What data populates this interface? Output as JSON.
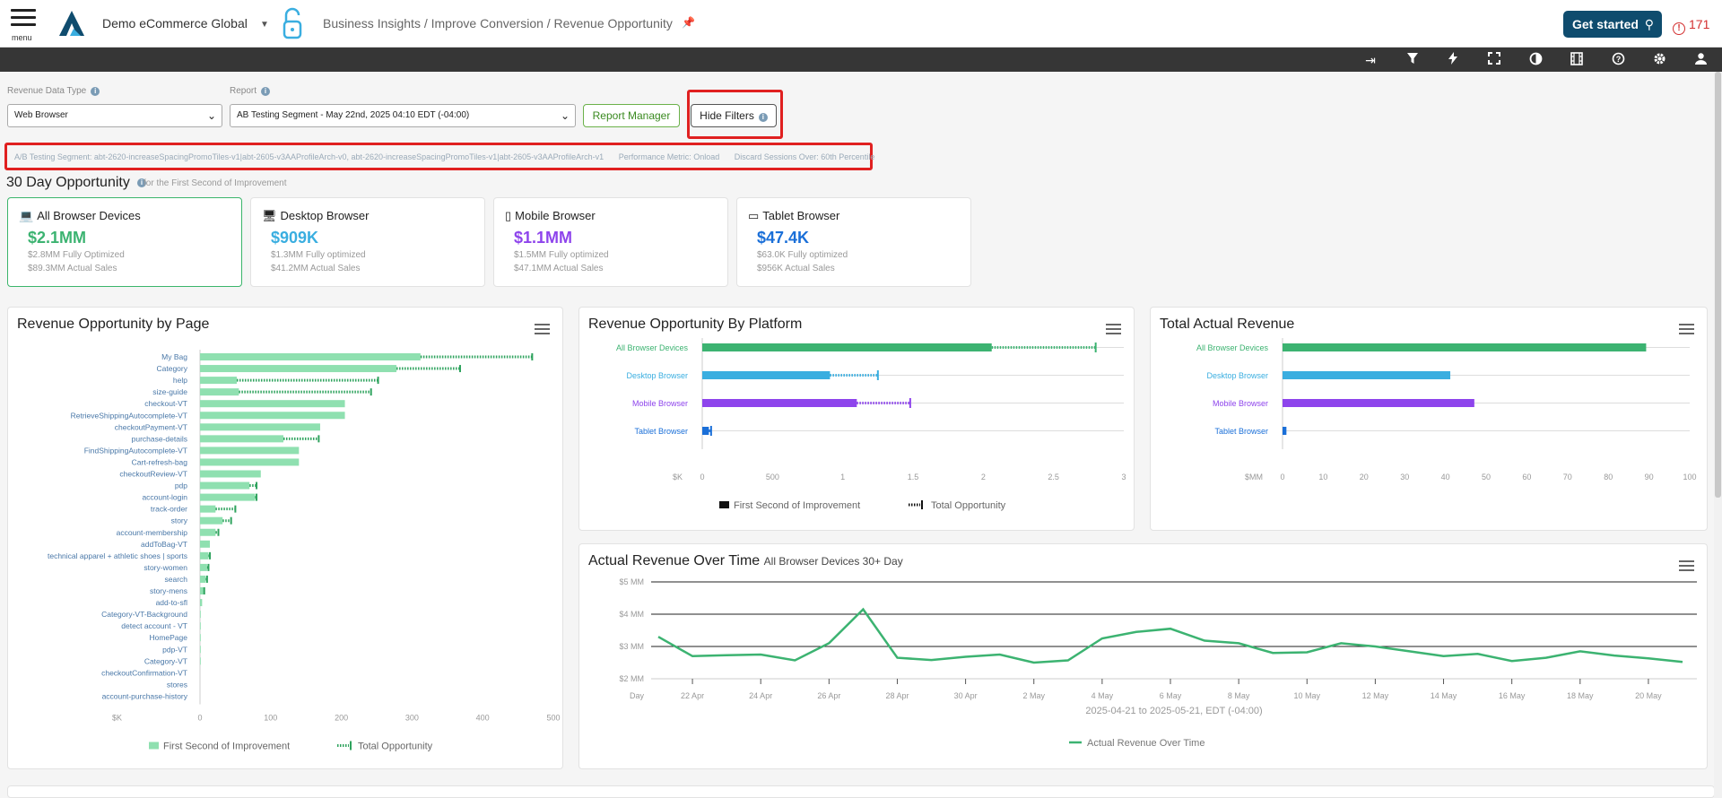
{
  "topbar": {
    "menu_label": "menu",
    "org_name": "Demo eCommerce Global",
    "breadcrumb": "Business Insights / Improve Conversion / Revenue Opportunity",
    "get_started": "Get started",
    "alert_count": "171"
  },
  "toolbar": {
    "icons": [
      "sign-in-icon",
      "filter-icon",
      "lightning-icon",
      "fullscreen-icon",
      "contrast-icon",
      "film-icon",
      "help-icon",
      "settings-icon",
      "user-icon"
    ]
  },
  "filters": {
    "revenue_data_type_label": "Revenue Data Type",
    "revenue_data_type_value": "Web Browser",
    "report_label": "Report",
    "report_value": "AB Testing Segment - May 22nd, 2025 04:10 EDT (-04:00)",
    "report_manager": "Report Manager",
    "hide_filters": "Hide Filters"
  },
  "segment_info": {
    "segment": "A/B Testing Segment: abt-2620-increaseSpacingPromoTiles-v1|abt-2605-v3AAProfileArch-v0, abt-2620-increaseSpacingPromoTiles-v1|abt-2605-v3AAProfileArch-v1",
    "metric": "Performance Metric: Onload",
    "discard": "Discard Sessions Over: 60th Percentile"
  },
  "opportunity": {
    "title": "30 Day Opportunity",
    "subtitle": "for the First Second of Improvement",
    "cards": [
      {
        "title": "All Browser Devices",
        "value": "$2.1MM",
        "line1": "$2.8MM Fully Optimized",
        "line2": "$89.3MM Actual Sales",
        "color": "#3cb371"
      },
      {
        "title": "Desktop Browser",
        "value": "$909K",
        "line1": "$1.3MM Fully optimized",
        "line2": "$41.2MM Actual Sales",
        "color": "#3aaee0"
      },
      {
        "title": "Mobile Browser",
        "value": "$1.1MM",
        "line1": "$1.5MM Fully optimized",
        "line2": "$47.1MM Actual Sales",
        "color": "#8e44ec"
      },
      {
        "title": "Tablet Browser",
        "value": "$47.4K",
        "line1": "$63.0K Fully optimized",
        "line2": "$956K Actual Sales",
        "color": "#1a6fd8"
      }
    ]
  },
  "panels": {
    "by_page_title": "Revenue Opportunity by Page",
    "by_platform_title": "Revenue Opportunity By Platform",
    "total_revenue_title": "Total Actual Revenue",
    "over_time_title": "Actual Revenue Over Time",
    "over_time_sub": "All Browser Devices 30+ Day"
  },
  "chart_data": [
    {
      "type": "bar",
      "title": "Revenue Opportunity by Page",
      "xlabel": "$K",
      "xlim": [
        0,
        500
      ],
      "xticks": [
        0,
        100,
        200,
        300,
        400,
        500
      ],
      "categories": [
        "My Bag",
        "Category",
        "help",
        "size-guide",
        "checkout-VT",
        "RetrieveShippingAutocomplete-VT",
        "checkoutPayment-VT",
        "purchase-details",
        "FindShippingAutocomplete-VT",
        "Cart-refresh-bag",
        "checkoutReview-VT",
        "pdp",
        "account-login",
        "track-order",
        "story",
        "account-membership",
        "addToBag-VT",
        "technical apparel + athletic shoes | sports",
        "story-women",
        "search",
        "story-mens",
        "add-to-sfl",
        "Category-VT-Background",
        "detect account - VT",
        "HomePage",
        "pdp-VT",
        "Category-VT",
        "checkoutConfirmation-VT",
        "stores",
        "account-purchase-history"
      ],
      "series": [
        {
          "name": "First Second of Improvement",
          "color": "#8fe0b0",
          "values": [
            312,
            278,
            52,
            55,
            205,
            205,
            170,
            118,
            140,
            140,
            86,
            70,
            78,
            22,
            32,
            22,
            14,
            12,
            10,
            8,
            5,
            3,
            1,
            1,
            1,
            1,
            1,
            0,
            0,
            0
          ]
        },
        {
          "name": "Total Opportunity",
          "color": "#2fa35e",
          "values": [
            470,
            368,
            252,
            242,
            205,
            205,
            170,
            168,
            140,
            140,
            86,
            80,
            80,
            50,
            44,
            26,
            14,
            14,
            12,
            10,
            6,
            3,
            1,
            1,
            1,
            1,
            1,
            0,
            0,
            0
          ]
        }
      ]
    },
    {
      "type": "bar",
      "title": "Revenue Opportunity By Platform",
      "xlabel": "$K",
      "xticks": [
        "0",
        "500",
        "1",
        "1.5",
        "2",
        "2.5",
        "3"
      ],
      "xlim": [
        0,
        3
      ],
      "categories": [
        "All Browser Devices",
        "Desktop Browser",
        "Mobile Browser",
        "Tablet Browser"
      ],
      "colors": [
        "#3cb371",
        "#3aaee0",
        "#8e44ec",
        "#1a6fd8"
      ],
      "series": [
        {
          "name": "First Second of Improvement",
          "values": [
            2.06,
            0.909,
            1.1,
            0.047
          ]
        },
        {
          "name": "Total Opportunity",
          "values": [
            2.8,
            1.25,
            1.48,
            0.063
          ]
        }
      ]
    },
    {
      "type": "bar",
      "title": "Total Actual Revenue",
      "xlabel": "$MM",
      "xlim": [
        0,
        100
      ],
      "xticks": [
        0,
        10,
        20,
        30,
        40,
        50,
        60,
        70,
        80,
        90,
        100
      ],
      "categories": [
        "All Browser Devices",
        "Desktop Browser",
        "Mobile Browser",
        "Tablet Browser"
      ],
      "colors": [
        "#3cb371",
        "#3aaee0",
        "#8e44ec",
        "#1a6fd8"
      ],
      "values": [
        89.3,
        41.2,
        47.1,
        0.956
      ]
    },
    {
      "type": "line",
      "title": "Actual Revenue Over Time",
      "subtitle": "All Browser Devices 30+ Day",
      "xlabel": "2025-04-21 to 2025-05-21, EDT (-04:00)",
      "x_axis_name": "Day",
      "yticks": [
        "$2 MM",
        "$3 MM",
        "$4 MM",
        "$5 MM"
      ],
      "ylim": [
        2,
        5
      ],
      "xticks": [
        "22 Apr",
        "24 Apr",
        "26 Apr",
        "28 Apr",
        "30 Apr",
        "2 May",
        "4 May",
        "6 May",
        "8 May",
        "10 May",
        "12 May",
        "14 May",
        "16 May",
        "18 May",
        "20 May"
      ],
      "series": [
        {
          "name": "Actual Revenue Over Time",
          "color": "#3cb371",
          "x": [
            "2025-04-21",
            "2025-04-22",
            "2025-04-23",
            "2025-04-24",
            "2025-04-25",
            "2025-04-26",
            "2025-04-27",
            "2025-04-28",
            "2025-04-29",
            "2025-04-30",
            "2025-05-01",
            "2025-05-02",
            "2025-05-03",
            "2025-05-04",
            "2025-05-05",
            "2025-05-06",
            "2025-05-07",
            "2025-05-08",
            "2025-05-09",
            "2025-05-10",
            "2025-05-11",
            "2025-05-12",
            "2025-05-13",
            "2025-05-14",
            "2025-05-15",
            "2025-05-16",
            "2025-05-17",
            "2025-05-18",
            "2025-05-19",
            "2025-05-20",
            "2025-05-21"
          ],
          "values": [
            3.3,
            2.7,
            2.73,
            2.75,
            2.57,
            3.1,
            4.15,
            2.65,
            2.58,
            2.68,
            2.75,
            2.5,
            2.57,
            3.25,
            3.45,
            3.55,
            3.18,
            3.1,
            2.8,
            2.82,
            3.1,
            3.0,
            2.85,
            2.7,
            2.77,
            2.55,
            2.65,
            2.85,
            2.72,
            2.63,
            2.52
          ]
        }
      ]
    }
  ]
}
